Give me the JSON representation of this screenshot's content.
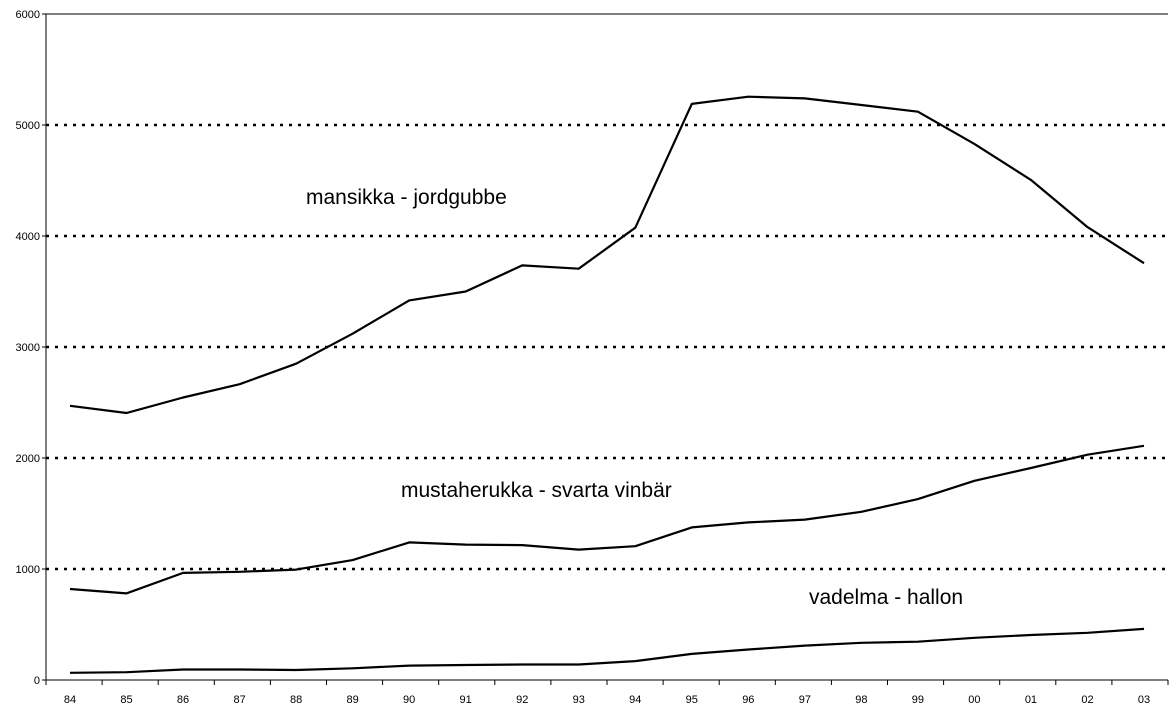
{
  "chart_data": {
    "type": "line",
    "title": "",
    "xlabel": "",
    "ylabel": "",
    "categories": [
      "84",
      "85",
      "86",
      "87",
      "88",
      "89",
      "90",
      "91",
      "92",
      "93",
      "94",
      "95",
      "96",
      "97",
      "98",
      "99",
      "00",
      "01",
      "02",
      "03"
    ],
    "ylim": [
      0,
      6000
    ],
    "yticks": [
      0,
      1000,
      2000,
      3000,
      4000,
      5000,
      6000
    ],
    "grid": "horizontal dotted",
    "legend": "none",
    "series": [
      {
        "name": "mansikka - jordgubbe",
        "values": [
          2470,
          2405,
          2545,
          2665,
          2850,
          3120,
          3420,
          3500,
          3735,
          3705,
          4075,
          5190,
          5255,
          5240,
          5180,
          5120,
          4830,
          4505,
          4080,
          3755
        ]
      },
      {
        "name": "mustaherukka - svarta vinbär",
        "values": [
          820,
          780,
          965,
          975,
          995,
          1080,
          1240,
          1220,
          1215,
          1175,
          1205,
          1375,
          1420,
          1445,
          1515,
          1630,
          1795,
          1910,
          2030,
          2110
        ]
      },
      {
        "name": "vadelma - hallon",
        "values": [
          65,
          70,
          95,
          95,
          90,
          105,
          130,
          135,
          140,
          140,
          170,
          235,
          275,
          310,
          335,
          345,
          380,
          405,
          425,
          460
        ]
      }
    ],
    "colors": {
      "line": "#000000",
      "grid": "#000000",
      "background": "#ffffff"
    }
  }
}
